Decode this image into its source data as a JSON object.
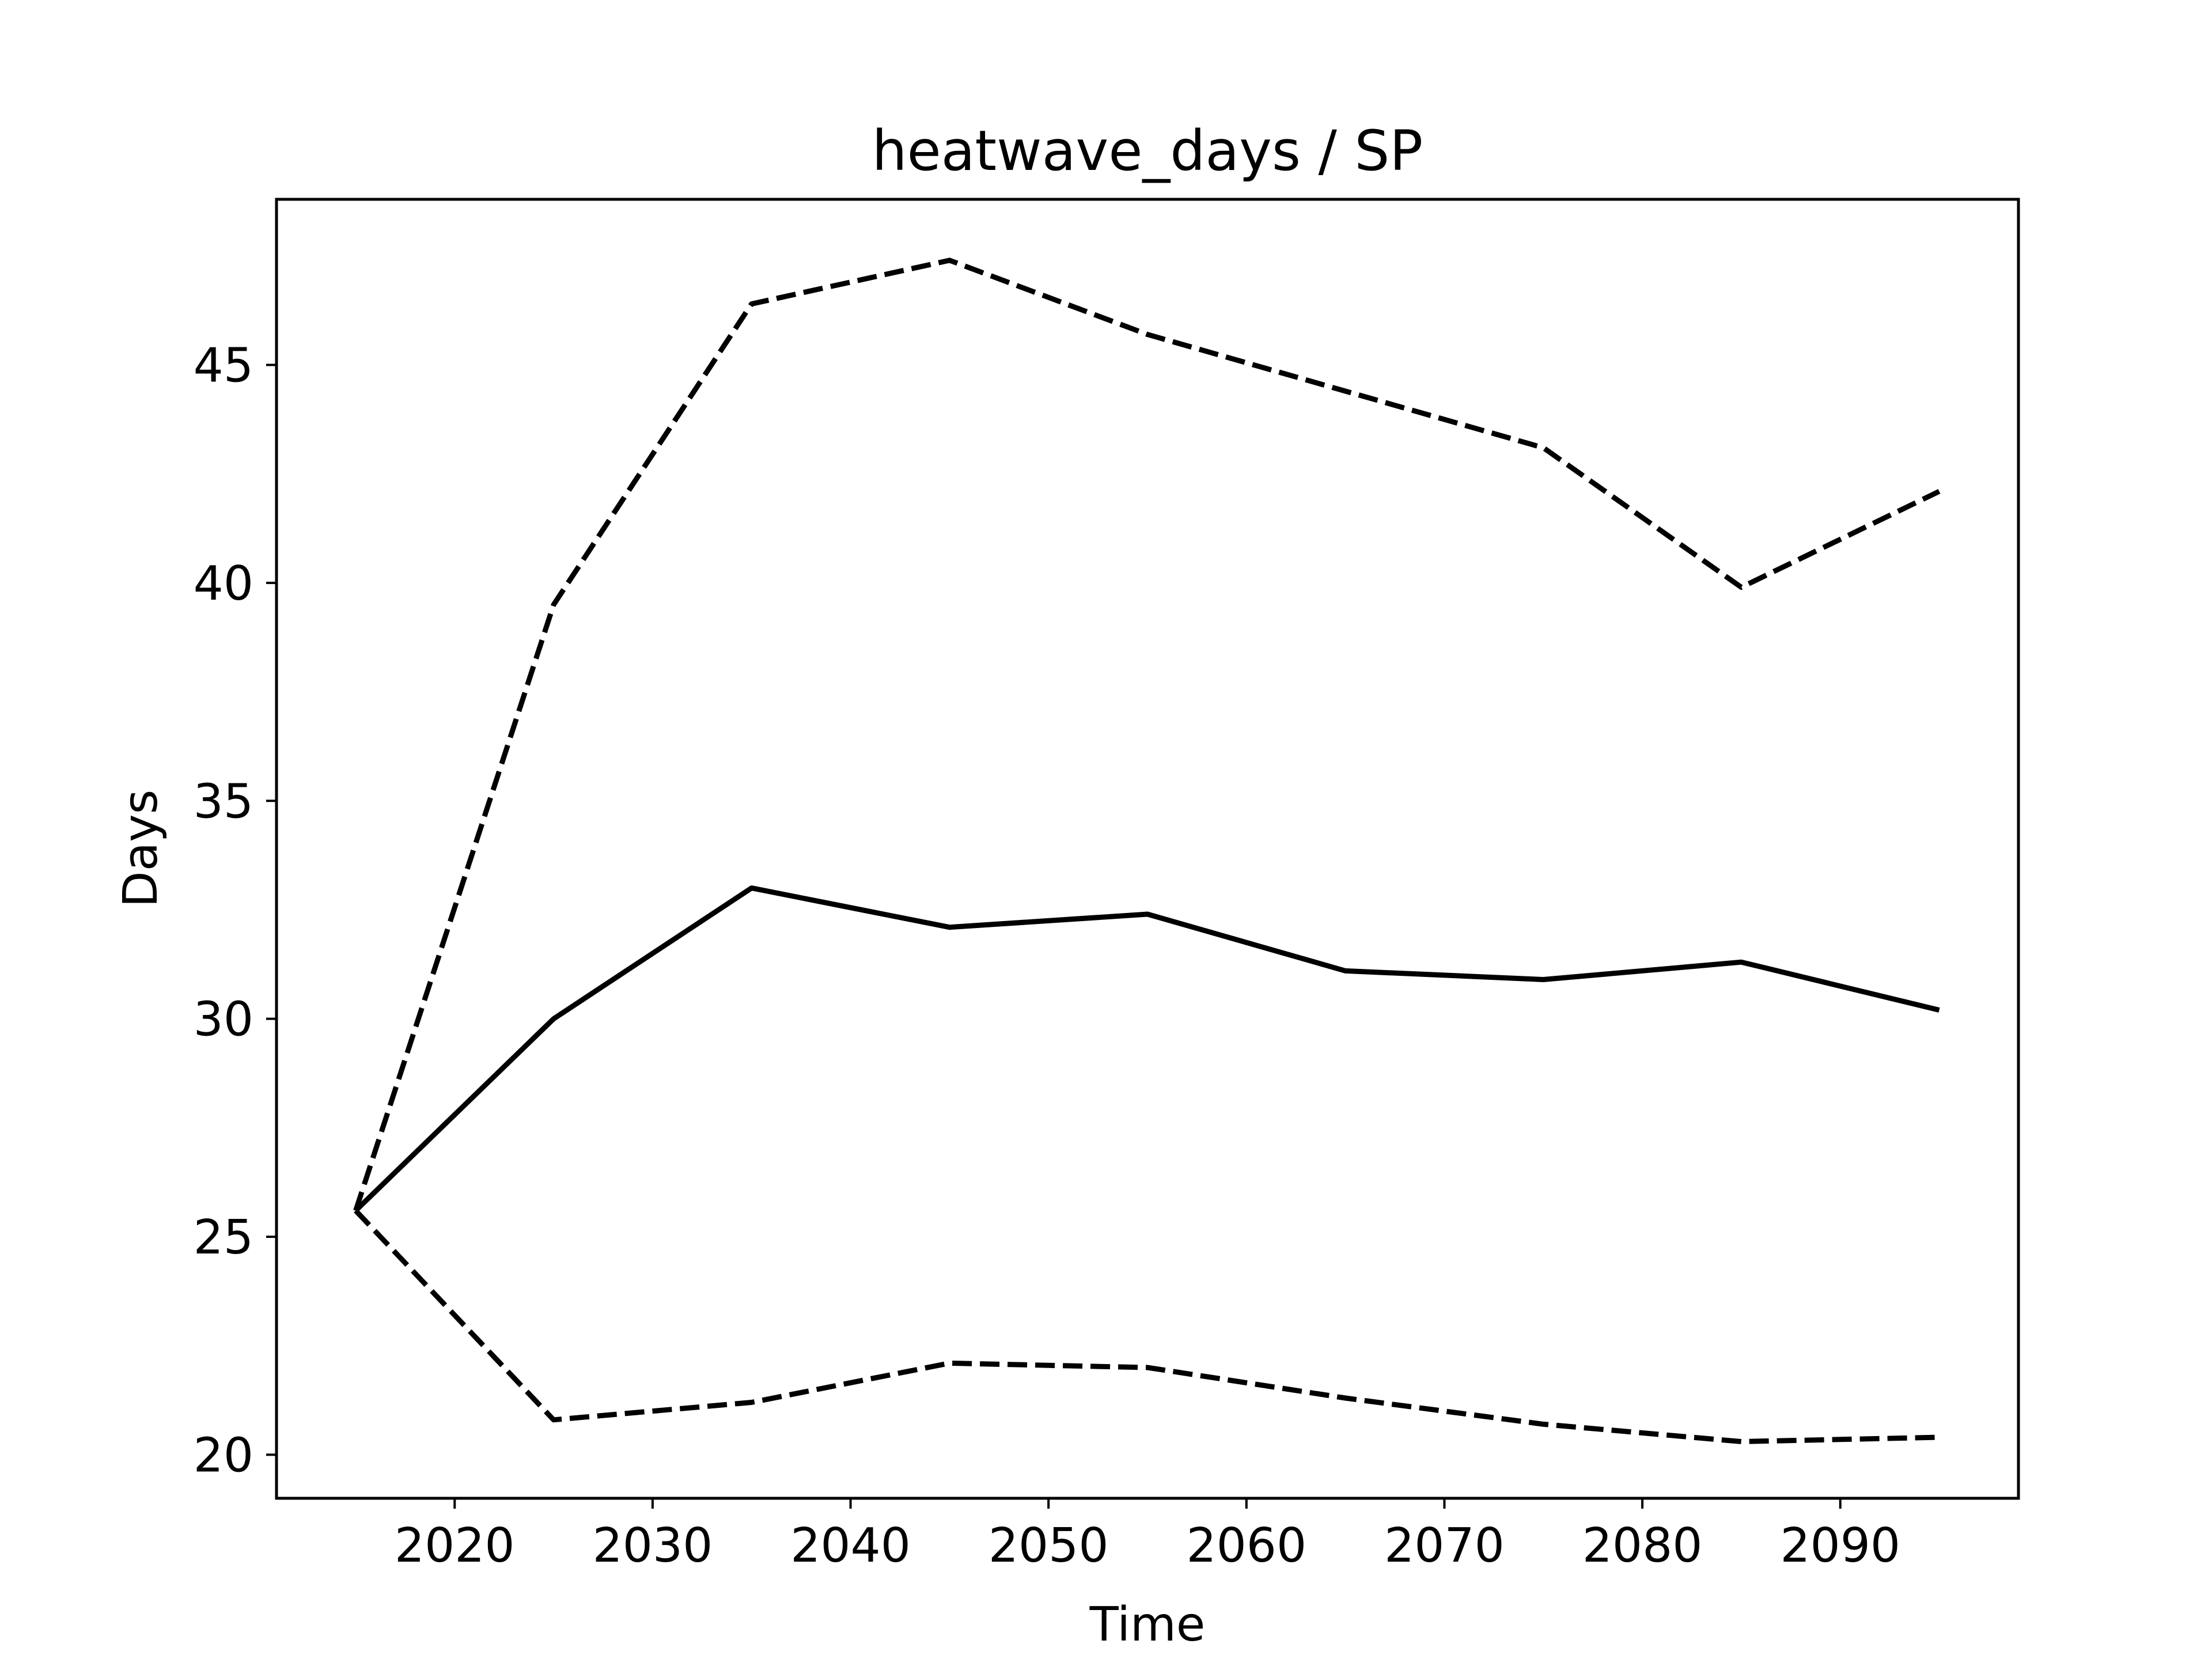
{
  "chart_data": {
    "type": "line",
    "title": "heatwave_days / SP",
    "xlabel": "Time",
    "ylabel": "Days",
    "xlim": [
      2011,
      2099
    ],
    "ylim": [
      19.0,
      48.8
    ],
    "xticks": [
      2020,
      2030,
      2040,
      2050,
      2060,
      2070,
      2080,
      2090
    ],
    "yticks": [
      20,
      25,
      30,
      35,
      40,
      45
    ],
    "x": [
      2015,
      2025,
      2035,
      2045,
      2055,
      2065,
      2075,
      2085,
      2095
    ],
    "series": [
      {
        "style": "solid",
        "color": "#000000",
        "values": [
          25.6,
          30.0,
          33.0,
          32.1,
          32.4,
          31.1,
          30.9,
          31.3,
          30.2
        ]
      },
      {
        "style": "dashed",
        "color": "#000000",
        "values": [
          25.6,
          39.5,
          46.4,
          47.4,
          45.7,
          44.4,
          43.1,
          39.9,
          42.1
        ]
      },
      {
        "style": "dashed",
        "color": "#000000",
        "values": [
          25.6,
          20.8,
          21.2,
          22.1,
          22.0,
          21.3,
          20.7,
          20.3,
          20.4
        ]
      }
    ],
    "grid": false,
    "legend": "none"
  }
}
